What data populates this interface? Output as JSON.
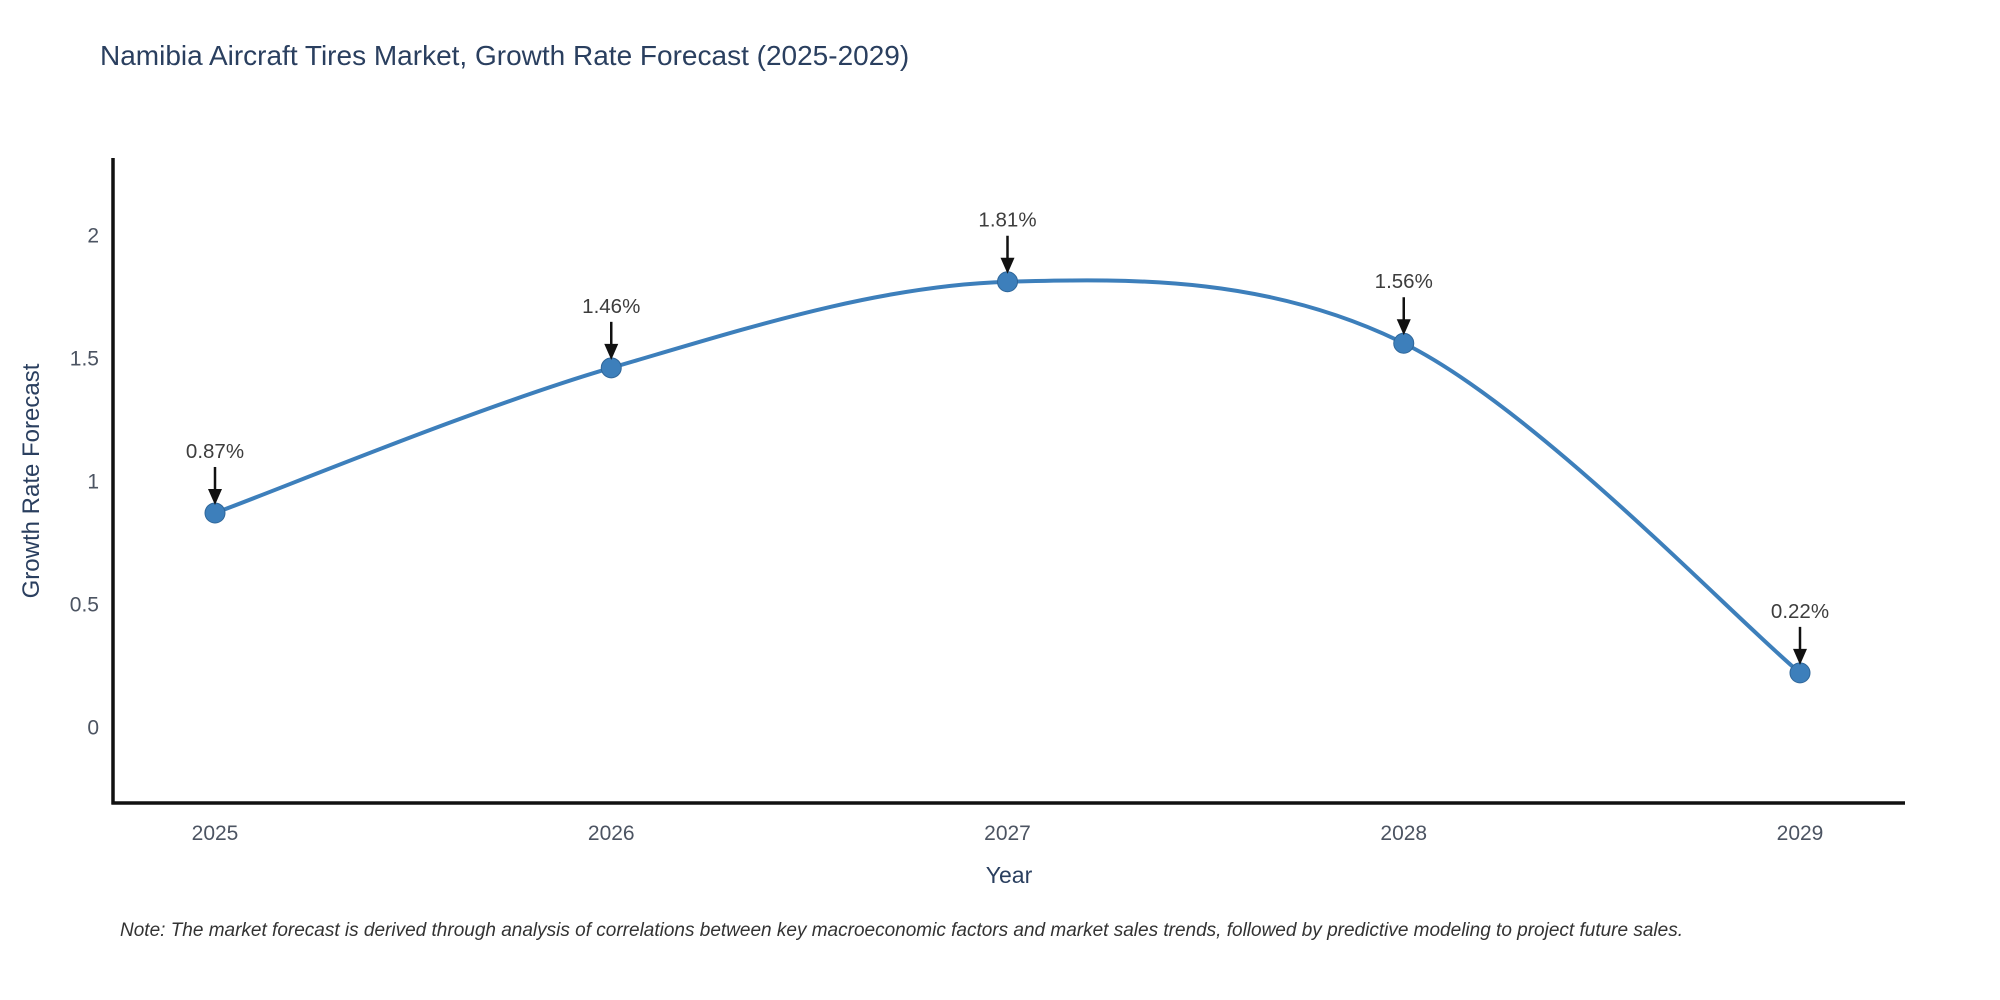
{
  "note": "Note: The market forecast is derived through analysis of correlations between key macroeconomic factors and market sales trends, followed by predictive modeling to project future sales.",
  "chart_data": {
    "type": "line",
    "title": "Namibia Aircraft Tires Market, Growth Rate Forecast (2025-2029)",
    "xlabel": "Year",
    "ylabel": "Growth Rate Forecast",
    "categories": [
      "2025",
      "2026",
      "2027",
      "2028",
      "2029"
    ],
    "values": [
      0.87,
      1.46,
      1.81,
      1.56,
      0.22
    ],
    "point_labels": [
      "0.87%",
      "1.46%",
      "1.81%",
      "1.56%",
      "0.22%"
    ],
    "ytick_labels": [
      "0",
      "0.5",
      "1",
      "1.5",
      "2"
    ],
    "ytick_values": [
      0,
      0.5,
      1,
      1.5,
      2
    ],
    "ylim": [
      -0.31,
      2.31
    ],
    "line_shape": "spline",
    "grid": false,
    "legend_position": "none",
    "colors": {
      "line": "#3d7fbb",
      "marker": "#3d7fbb",
      "marker_edge": "#2f6699",
      "axis": "#111111",
      "tick_text": "#4c5462",
      "title_text": "#2a3f5f",
      "annotation_text": "#3d3d3d",
      "arrow": "#111111",
      "note_text": "#333333"
    }
  }
}
